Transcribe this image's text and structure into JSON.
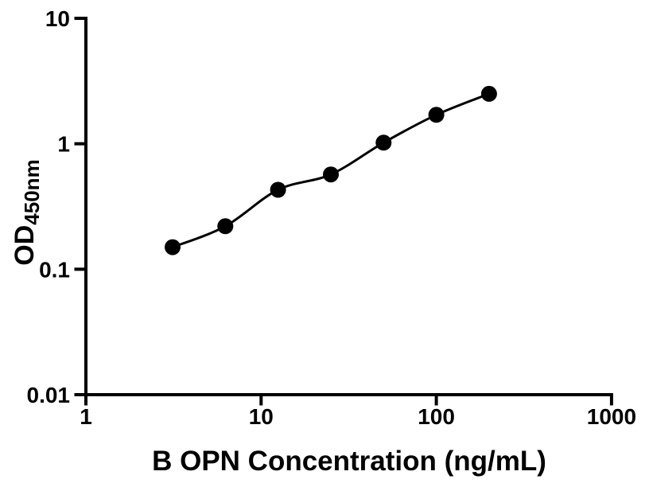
{
  "chart_data": {
    "type": "scatter",
    "xlabel": "B OPN Concentration (ng/mL)",
    "ylabel_main": "OD",
    "ylabel_sub": "450nm",
    "xscale": "log",
    "yscale": "log",
    "xlim": [
      1,
      1000
    ],
    "ylim": [
      0.01,
      10
    ],
    "grid": false,
    "legend": false,
    "marker": {
      "shape": "circle",
      "color": "#000000"
    },
    "line": {
      "style": "solid",
      "color": "#000000"
    },
    "x": [
      3.125,
      6.25,
      12.5,
      25,
      50,
      100,
      200
    ],
    "y": [
      0.15,
      0.22,
      0.43,
      0.57,
      1.02,
      1.7,
      2.5
    ],
    "x_ticks": {
      "values": [
        1,
        10,
        100,
        1000
      ],
      "labels": [
        "1",
        "10",
        "100",
        "1000"
      ]
    },
    "y_ticks": {
      "values": [
        0.01,
        0.1,
        1,
        10
      ],
      "labels": [
        "0.01",
        "0.1",
        "1",
        "10"
      ]
    }
  }
}
